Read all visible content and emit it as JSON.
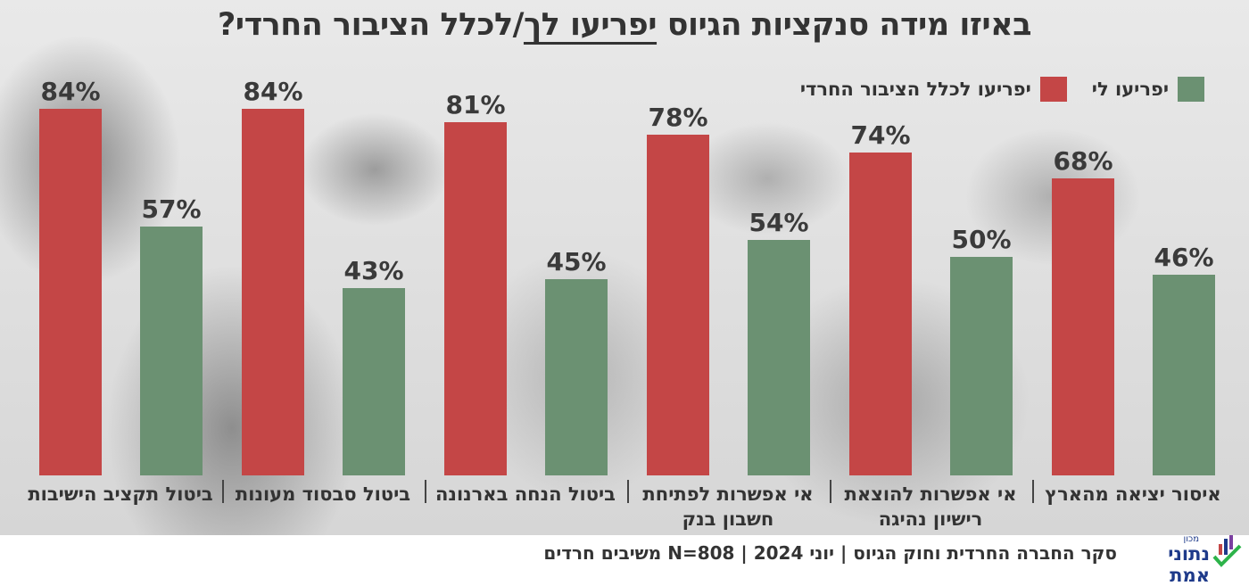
{
  "title": {
    "before": "באיזו מידה סנקציות הגיוס ",
    "underlined": "יפריעו לך",
    "after": "/לכלל הציבור החרדי?"
  },
  "legend": [
    {
      "label": "יפריעו לי",
      "color": "#6b9172"
    },
    {
      "label": "יפריעו לכלל הציבור החרדי",
      "color": "#c44646"
    }
  ],
  "chart_data": {
    "type": "bar",
    "title": "באיזו מידה סנקציות הגיוס יפריעו לך/לכלל הציבור החרדי?",
    "categories": [
      "ביטול תקציב הישיבות",
      "ביטול סבסוד מעונות",
      "ביטול הנחה בארנונה",
      "אי אפשרות לפתיחת חשבון בנק",
      "אי אפשרות להוצאת רישיון נהיגה",
      "איסור יציאה מהארץ"
    ],
    "series": [
      {
        "name": "יפריעו לכלל הציבור החרדי",
        "color": "#c44646",
        "values": [
          84,
          84,
          81,
          78,
          74,
          68
        ],
        "labels": [
          "84%",
          "84%",
          "81%",
          "78%",
          "74%",
          "68%"
        ]
      },
      {
        "name": "יפריעו לי",
        "color": "#6b9172",
        "values": [
          57,
          43,
          45,
          54,
          50,
          46
        ],
        "labels": [
          "57%",
          "43%",
          "45%",
          "54%",
          "50%",
          "46%"
        ]
      }
    ],
    "ylim": [
      0,
      100
    ],
    "unit": "%",
    "grid": false,
    "legend_position": "top-right"
  },
  "footer": {
    "text": "סקר החברה החרדית וחוק הגיוס | יוני 2024 | N=808 משיבים חרדים",
    "logo_small": "מכון",
    "logo_main": "נתוני אמת"
  }
}
